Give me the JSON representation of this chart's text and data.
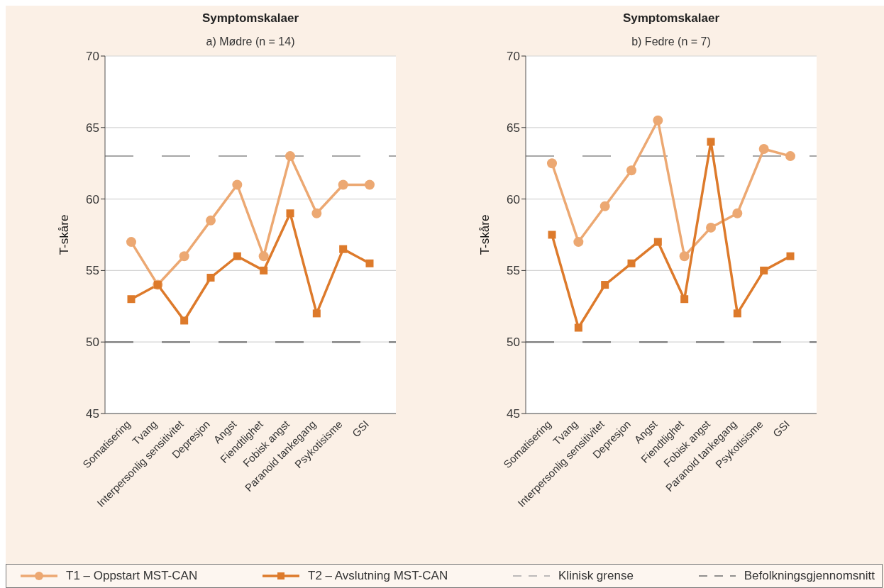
{
  "chart_data": [
    {
      "type": "line",
      "title": "Symptomskalaer",
      "subtitle": "a) Mødre (n = 14)",
      "ylabel": "T-skåre",
      "categories": [
        "Somatisering",
        "Tvang",
        "Interpersonlig sensitivitet",
        "Depresjon",
        "Angst",
        "Fiendtlighet",
        "Fobisk angst",
        "Paranoid tankegang",
        "Psykotisisme",
        "GSI"
      ],
      "series": [
        {
          "name": "T1 – Oppstart MST-CAN",
          "color": "#eca872",
          "marker": "circle",
          "values": [
            57,
            54,
            56,
            58.5,
            61,
            56,
            63,
            59,
            61,
            61
          ]
        },
        {
          "name": "T2 – Avslutning MST-CAN",
          "color": "#dd7a2b",
          "marker": "square",
          "values": [
            53,
            54,
            51.5,
            54.5,
            56,
            55,
            59,
            52,
            56.5,
            55.5
          ]
        }
      ],
      "ylim": [
        45,
        70
      ],
      "yticks": [
        45,
        50,
        55,
        60,
        65,
        70
      ],
      "grid": "y",
      "legend": "bottom",
      "line_style": "solid",
      "ref_lines": [
        {
          "axis": "y",
          "value": 63,
          "label": "Klinisk grense",
          "color": "#a6a6a6",
          "line_style": "dashed"
        },
        {
          "axis": "y",
          "value": 50,
          "label": "Befolkningsgjennomsnitt",
          "color": "#6e6e6e",
          "line_style": "dashed"
        }
      ]
    },
    {
      "type": "line",
      "title": "Symptomskalaer",
      "subtitle": "b) Fedre (n = 7)",
      "ylabel": "T-skåre",
      "categories": [
        "Somatisering",
        "Tvang",
        "Interpersonlig sensitivitet",
        "Depresjon",
        "Angst",
        "Fiendtlighet",
        "Fobisk angst",
        "Paranoid tankegang",
        "Psykotisisme",
        "GSI"
      ],
      "series": [
        {
          "color": "#eca872",
          "marker": "circle",
          "values": [
            62.5,
            57,
            59.5,
            62,
            65.5,
            56,
            58,
            59,
            63.5,
            63
          ]
        },
        {
          "color": "#dd7a2b",
          "marker": "square",
          "values": [
            57.5,
            51,
            54,
            55.5,
            57,
            53,
            64,
            52,
            55,
            56
          ]
        }
      ],
      "ylim": [
        45,
        70
      ],
      "yticks": [
        45,
        50,
        55,
        60,
        65,
        70
      ],
      "grid": "y",
      "line_style": "solid",
      "ref_lines": [
        {
          "axis": "y",
          "value": 63,
          "color": "#a6a6a6",
          "line_style": "dashed"
        },
        {
          "axis": "y",
          "value": 50,
          "color": "#6e6e6e",
          "line_style": "dashed"
        }
      ]
    }
  ]
}
